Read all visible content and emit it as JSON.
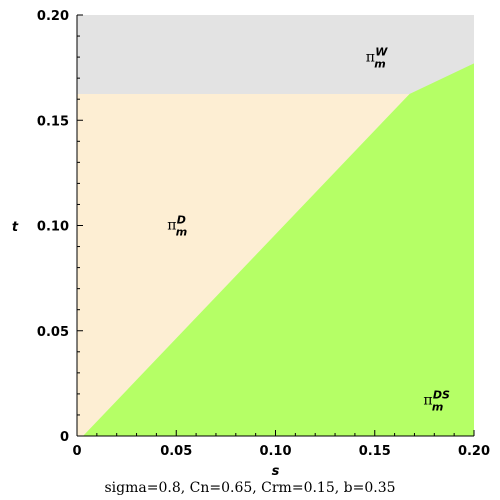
{
  "chart_data": {
    "type": "area",
    "xlabel": "s",
    "ylabel": "t",
    "xlim": [
      0,
      0.2
    ],
    "ylim": [
      0,
      0.2
    ],
    "x_ticks": [
      "0",
      "0.05",
      "0.10",
      "0.15",
      "0.20"
    ],
    "y_ticks": [
      "0",
      "0.05",
      "0.10",
      "0.15",
      "0.20"
    ],
    "grid": false,
    "caption": "sigma=0.8, Cn=0.65, Crm=0.15, b=0.35",
    "regions": [
      {
        "base": "π",
        "sub": "m",
        "sup": "W",
        "color": "#e3e3e3",
        "label_at": [
          0.15,
          0.178
        ],
        "polygon": [
          [
            0,
            0.1625
          ],
          [
            0,
            0.2
          ],
          [
            0.2,
            0.2
          ],
          [
            0.2,
            0.1625
          ]
        ]
      },
      {
        "base": "π",
        "sub": "m",
        "sup": "D",
        "color": "#fdeed3",
        "label_at": [
          0.05,
          0.098
        ],
        "polygon": [
          [
            0,
            0
          ],
          [
            0,
            0.1625
          ],
          [
            0.1675,
            0.1625
          ],
          [
            0.003,
            0
          ]
        ]
      },
      {
        "base": "π",
        "sub": "m",
        "sup": "DS",
        "color": "#b5ff66",
        "label_at": [
          0.179,
          0.015
        ],
        "polygon": [
          [
            0.003,
            0
          ],
          [
            0.1675,
            0.1625
          ],
          [
            0.2,
            0.177
          ],
          [
            0.2,
            0
          ]
        ]
      }
    ]
  }
}
